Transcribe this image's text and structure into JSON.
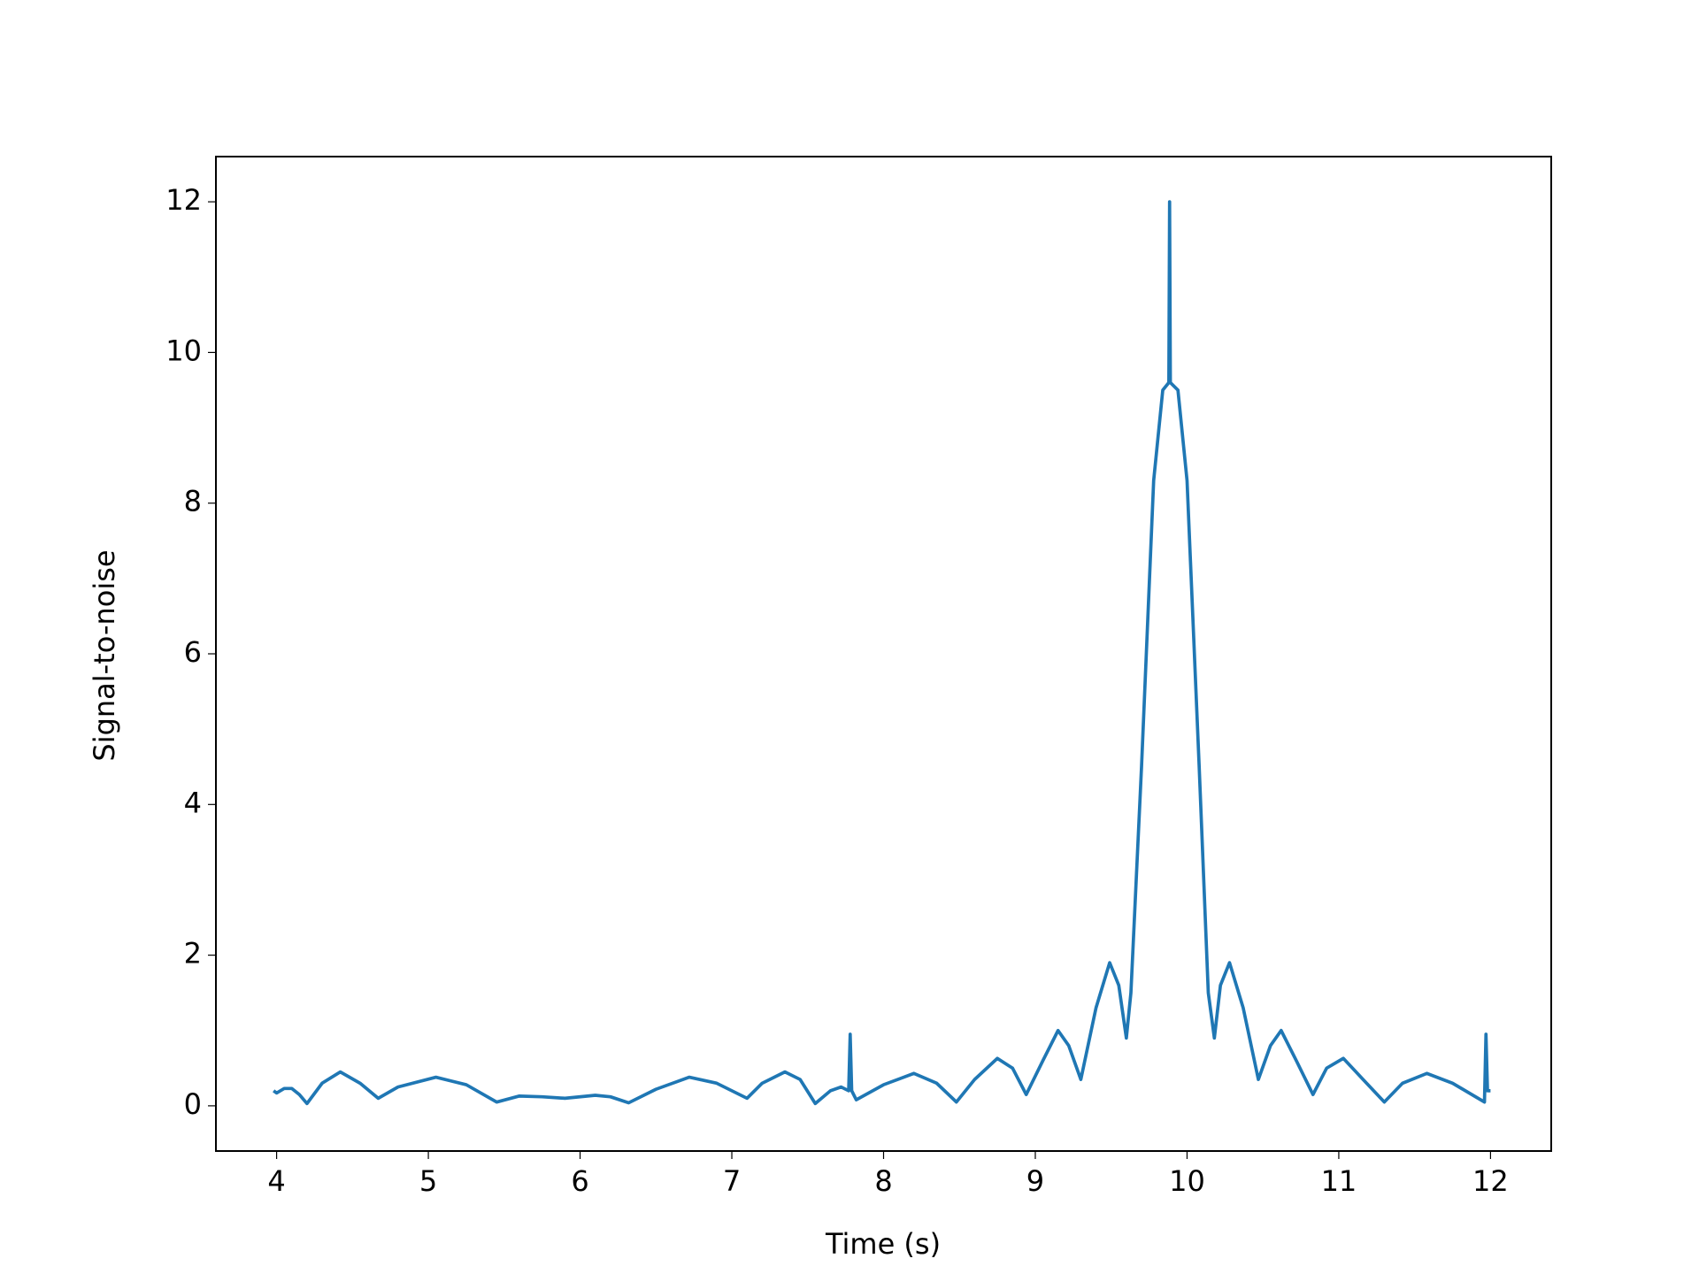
{
  "chart_data": {
    "type": "line",
    "xlabel": "Time (s)",
    "ylabel": "Signal-to-noise",
    "x": [
      3.98,
      4.0,
      4.05,
      4.1,
      4.15,
      4.2,
      4.3,
      4.42,
      4.55,
      4.67,
      4.8,
      5.05,
      5.25,
      5.45,
      5.6,
      5.75,
      5.9,
      6.1,
      6.2,
      6.32,
      6.5,
      6.72,
      6.9,
      7.1,
      7.2,
      7.35,
      7.45,
      7.55,
      7.65,
      7.72,
      7.77,
      7.78,
      7.79,
      7.82,
      8.0,
      8.2,
      8.35,
      8.48,
      8.6,
      8.75,
      8.85,
      8.94,
      9.05,
      9.15,
      9.22,
      9.3,
      9.4,
      9.49,
      9.55,
      9.6,
      9.63,
      9.7,
      9.78,
      9.84,
      9.88,
      9.885,
      9.89,
      9.94,
      10.0,
      10.08,
      10.14,
      10.18,
      10.22,
      10.28,
      10.37,
      10.47,
      10.55,
      10.62,
      10.72,
      10.83,
      10.92,
      11.03,
      11.16,
      11.3,
      11.42,
      11.58,
      11.75,
      11.96,
      11.97,
      11.98,
      12.0
    ],
    "values": [
      0.2,
      0.17,
      0.23,
      0.23,
      0.15,
      0.03,
      0.3,
      0.45,
      0.3,
      0.1,
      0.25,
      0.38,
      0.28,
      0.05,
      0.13,
      0.12,
      0.1,
      0.14,
      0.12,
      0.04,
      0.22,
      0.38,
      0.3,
      0.1,
      0.3,
      0.45,
      0.35,
      0.03,
      0.2,
      0.25,
      0.2,
      0.95,
      0.2,
      0.08,
      0.28,
      0.43,
      0.3,
      0.05,
      0.35,
      0.63,
      0.5,
      0.15,
      0.6,
      1.0,
      0.8,
      0.35,
      1.3,
      1.9,
      1.6,
      0.9,
      1.5,
      4.5,
      8.3,
      9.5,
      9.6,
      12.0,
      9.6,
      9.5,
      8.3,
      4.5,
      1.5,
      0.9,
      1.6,
      1.9,
      1.3,
      0.35,
      0.8,
      1.0,
      0.6,
      0.15,
      0.5,
      0.63,
      0.35,
      0.05,
      0.3,
      0.43,
      0.3,
      0.05,
      0.95,
      0.2,
      0.2
    ],
    "color": "#1f77b4",
    "xlim": [
      3.6,
      12.4
    ],
    "xticks": [
      4,
      5,
      6,
      7,
      8,
      9,
      10,
      11,
      12
    ],
    "ylim": [
      -0.6,
      12.6
    ],
    "yticks": [
      0,
      2,
      4,
      6,
      8,
      10,
      12
    ]
  }
}
